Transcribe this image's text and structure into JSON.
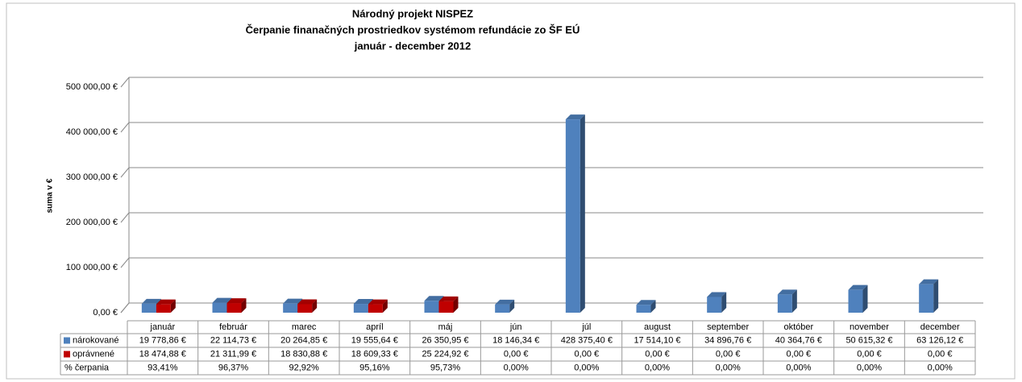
{
  "chart_data": {
    "type": "bar3d",
    "title": [
      "Národný projekt NISPEZ",
      "Čerpanie finanačných prostriedkov systémom refundácie zo ŠF EÚ",
      "január - december 2012"
    ],
    "y_label": "suma v €",
    "categories": [
      "január",
      "február",
      "marec",
      "apríl",
      "máj",
      "jún",
      "júl",
      "august",
      "september",
      "október",
      "november",
      "december"
    ],
    "ylim": [
      0,
      500000
    ],
    "yticks": [
      {
        "value": 0,
        "label": "0,00 €"
      },
      {
        "value": 100000,
        "label": "100 000,00 €"
      },
      {
        "value": 200000,
        "label": "200 000,00 €"
      },
      {
        "value": 300000,
        "label": "300 000,00 €"
      },
      {
        "value": 400000,
        "label": "400 000,00 €"
      },
      {
        "value": 500000,
        "label": "500 000,00 €"
      }
    ],
    "grid": true,
    "series": [
      {
        "name": "nárokované",
        "color": "#4f81bd",
        "values": [
          19778.86,
          22114.73,
          20264.85,
          19555.64,
          26350.95,
          18146.34,
          428375.4,
          17514.1,
          34896.76,
          40364.76,
          50615.32,
          63126.12
        ],
        "value_labels": [
          "19 778,86 €",
          "22 114,73 €",
          "20 264,85 €",
          "19 555,64 €",
          "26 350,95 €",
          "18 146,34 €",
          "428 375,40 €",
          "17 514,10 €",
          "34 896,76 €",
          "40 364,76 €",
          "50 615,32 €",
          "63 126,12 €"
        ]
      },
      {
        "name": "oprávnené",
        "color": "#c00000",
        "values": [
          18474.88,
          21311.99,
          18830.88,
          18609.33,
          25224.92,
          0,
          0,
          0,
          0,
          0,
          0,
          0
        ],
        "value_labels": [
          "18 474,88 €",
          "21 311,99 €",
          "18 830,88 €",
          "18 609,33 €",
          "25 224,92 €",
          "0,00 €",
          "0,00 €",
          "0,00 €",
          "0,00 €",
          "0,00 €",
          "0,00 €",
          "0,00 €"
        ]
      }
    ],
    "rate": {
      "name": "% čerpania",
      "values": [
        93.41,
        96.37,
        92.92,
        95.16,
        95.73,
        0,
        0,
        0,
        0,
        0,
        0,
        0
      ],
      "value_labels": [
        "93,41%",
        "96,37%",
        "92,92%",
        "95,16%",
        "95,73%",
        "0,00%",
        "0,00%",
        "0,00%",
        "0,00%",
        "0,00%",
        "0,00%",
        "0,00%"
      ]
    }
  }
}
